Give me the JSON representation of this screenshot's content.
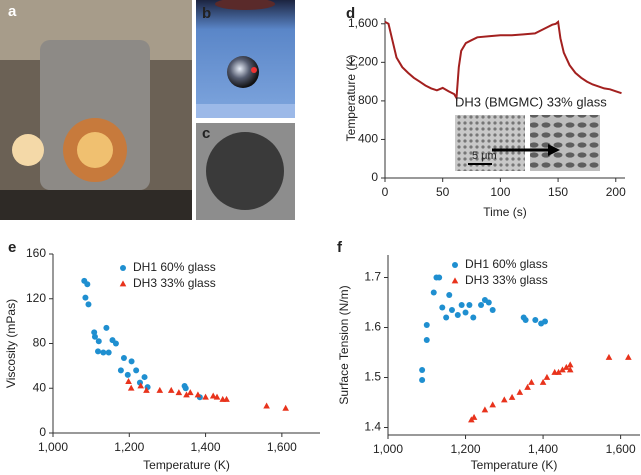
{
  "photo_labels": [
    "a",
    "b",
    "c"
  ],
  "chart_data": [
    {
      "type": "line",
      "label": "d",
      "xlabel": "Time (s)",
      "ylabel": "Temperature (K)",
      "annotations": [
        "DH3 (BMGMC) 33% glass",
        "5 μm"
      ],
      "color": "#a3201f",
      "x": [
        0,
        3,
        6,
        10,
        15,
        20,
        25,
        30,
        35,
        40,
        45,
        50,
        55,
        60,
        62,
        64,
        66,
        70,
        75,
        80,
        90,
        100,
        110,
        120,
        130,
        140,
        145,
        148,
        150,
        152,
        155,
        160,
        165,
        170,
        175,
        180,
        185,
        190,
        195,
        200,
        205
      ],
      "values": [
        1620,
        1600,
        1450,
        1250,
        1150,
        1090,
        1040,
        1000,
        960,
        930,
        910,
        935,
        900,
        870,
        830,
        1150,
        1320,
        1400,
        1430,
        1460,
        1470,
        1480,
        1480,
        1490,
        1500,
        1560,
        1590,
        1600,
        1620,
        1450,
        1300,
        1170,
        1090,
        1040,
        1000,
        970,
        950,
        930,
        920,
        900,
        880
      ],
      "xlim": [
        0,
        208
      ],
      "xticks": [
        0,
        50,
        100,
        150,
        200
      ],
      "ylim": [
        0,
        1660
      ],
      "yticks": [
        0,
        400,
        800,
        {
          "value": 1200,
          "label": "1,200"
        },
        {
          "value": 1600,
          "label": "1,600"
        }
      ]
    },
    {
      "type": "scatter",
      "label": "e",
      "xlabel": "Temperature (K)",
      "ylabel": "Viscosity (mPas)",
      "xlim": [
        1000,
        1700
      ],
      "xticks": [
        {
          "value": 1000,
          "label": "1,000"
        },
        {
          "value": 1200,
          "label": "1,200"
        },
        {
          "value": 1400,
          "label": "1,400"
        },
        {
          "value": 1600,
          "label": "1,600"
        }
      ],
      "ylim": [
        0,
        160
      ],
      "yticks": [
        0,
        40,
        80,
        120,
        160
      ],
      "series": [
        {
          "name": "DH1 60% glass",
          "color": "#1f8fd0",
          "marker": "circle",
          "x": [
            1082,
            1090,
            1085,
            1093,
            1108,
            1110,
            1120,
            1118,
            1132,
            1140,
            1146,
            1156,
            1165,
            1178,
            1186,
            1196,
            1206,
            1218,
            1228,
            1240,
            1248,
            1345,
            1348,
            1385
          ],
          "values": [
            136,
            133,
            121,
            115,
            90,
            86,
            82,
            73,
            72,
            94,
            72,
            83,
            80,
            56,
            67,
            52,
            64,
            56,
            45,
            50,
            41,
            42,
            40,
            32
          ]
        },
        {
          "name": "DH3 33% glass",
          "color": "#e8331c",
          "marker": "triangle",
          "x": [
            1198,
            1205,
            1230,
            1245,
            1280,
            1310,
            1330,
            1350,
            1360,
            1380,
            1400,
            1420,
            1430,
            1445,
            1455,
            1560,
            1610
          ],
          "values": [
            46,
            40,
            42,
            38,
            38,
            38,
            36,
            34,
            36,
            34,
            32,
            33,
            32,
            30,
            30,
            24,
            22
          ]
        }
      ]
    },
    {
      "type": "scatter",
      "label": "f",
      "xlabel": "Temperature (K)",
      "ylabel": "Surface Tension (N/m)",
      "xlim": [
        1000,
        1650
      ],
      "xticks": [
        {
          "value": 1000,
          "label": "1,000"
        },
        {
          "value": 1200,
          "label": "1,200"
        },
        {
          "value": 1400,
          "label": "1,400"
        },
        {
          "value": 1600,
          "label": "1,600"
        }
      ],
      "ylim": [
        1.385,
        1.745
      ],
      "yticks": [
        1.4,
        1.5,
        1.6,
        1.7
      ],
      "series": [
        {
          "name": "DH1 60% glass",
          "color": "#1f8fd0",
          "marker": "circle",
          "x": [
            1088,
            1088,
            1100,
            1100,
            1118,
            1125,
            1132,
            1140,
            1150,
            1158,
            1165,
            1180,
            1190,
            1200,
            1210,
            1220,
            1240,
            1250,
            1260,
            1270,
            1350,
            1355,
            1380,
            1395,
            1405
          ],
          "values": [
            1.495,
            1.515,
            1.575,
            1.605,
            1.67,
            1.7,
            1.7,
            1.64,
            1.62,
            1.665,
            1.635,
            1.625,
            1.645,
            1.63,
            1.645,
            1.62,
            1.645,
            1.655,
            1.65,
            1.635,
            1.62,
            1.615,
            1.615,
            1.608,
            1.612
          ]
        },
        {
          "name": "DH3 33% glass",
          "color": "#e8331c",
          "marker": "triangle",
          "x": [
            1215,
            1222,
            1250,
            1270,
            1300,
            1320,
            1340,
            1360,
            1370,
            1400,
            1410,
            1430,
            1440,
            1450,
            1460,
            1470,
            1470,
            1570,
            1620
          ],
          "values": [
            1.415,
            1.42,
            1.435,
            1.445,
            1.455,
            1.46,
            1.47,
            1.48,
            1.49,
            1.49,
            1.5,
            1.51,
            1.51,
            1.515,
            1.52,
            1.525,
            1.515,
            1.54,
            1.54
          ]
        }
      ]
    }
  ]
}
